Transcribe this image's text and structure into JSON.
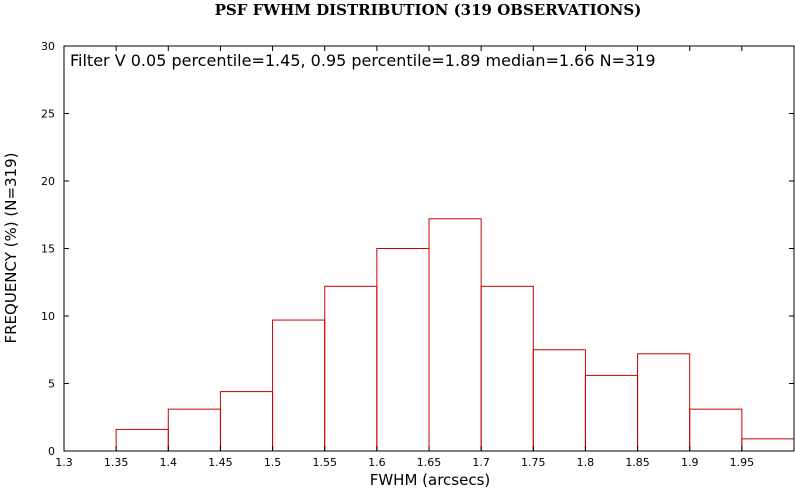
{
  "chart_data": {
    "type": "bar",
    "title": "PSF FWHM DISTRIBUTION (319 OBSERVATIONS)",
    "xlabel": "FWHM (arcsecs)",
    "ylabel": "FREQUENCY (%) (N=319)",
    "annotation": "Filter V 0.05 percentile=1.45, 0.95 percentile=1.89 median=1.66 N=319",
    "xlim": [
      1.3,
      2.0
    ],
    "ylim": [
      0,
      30
    ],
    "x_ticks": [
      "1.3",
      "1.35",
      "1.4",
      "1.45",
      "1.5",
      "1.55",
      "1.6",
      "1.65",
      "1.7",
      "1.75",
      "1.8",
      "1.85",
      "1.9",
      "1.95"
    ],
    "y_ticks": [
      "0",
      "5",
      "10",
      "15",
      "20",
      "25",
      "30"
    ],
    "grid": false,
    "bar_color": "#cc0000",
    "bin_width": 0.05,
    "bins": [
      {
        "start": 1.35,
        "value": 1.6
      },
      {
        "start": 1.4,
        "value": 3.1
      },
      {
        "start": 1.45,
        "value": 4.4
      },
      {
        "start": 1.5,
        "value": 9.7
      },
      {
        "start": 1.55,
        "value": 12.2
      },
      {
        "start": 1.6,
        "value": 15.0
      },
      {
        "start": 1.65,
        "value": 17.2
      },
      {
        "start": 1.7,
        "value": 12.2
      },
      {
        "start": 1.75,
        "value": 7.5
      },
      {
        "start": 1.8,
        "value": 5.6
      },
      {
        "start": 1.85,
        "value": 7.2
      },
      {
        "start": 1.9,
        "value": 3.1
      },
      {
        "start": 1.95,
        "value": 0.9
      }
    ]
  }
}
